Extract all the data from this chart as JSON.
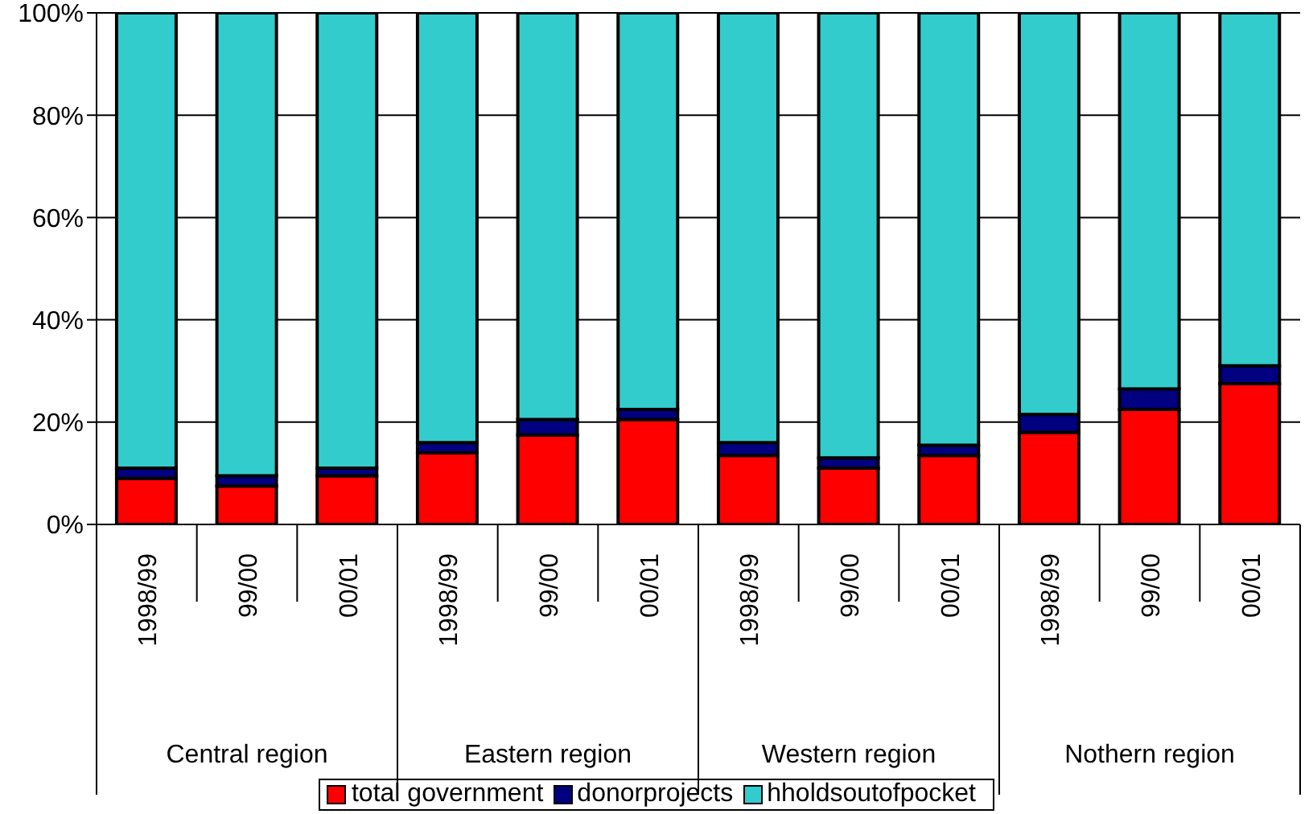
{
  "chart_data": {
    "type": "bar",
    "stacked": true,
    "categories": [
      "1998/99",
      "99/00",
      "00/01",
      "1998/99",
      "99/00",
      "00/01",
      "1998/99",
      "99/00",
      "00/01",
      "1998/99",
      "99/00",
      "00/01"
    ],
    "annotations": [
      "Central region",
      "Eastern region",
      "Western region",
      "Nothern region"
    ],
    "series": [
      {
        "name": "total government",
        "color": "#ff0000",
        "values": [
          9,
          7.5,
          9.5,
          14,
          17.5,
          20.5,
          13.5,
          11,
          13.5,
          18,
          22.5,
          27.5
        ]
      },
      {
        "name": "donorprojects",
        "color": "#000080",
        "values": [
          2,
          2,
          1.5,
          2,
          3,
          2,
          2.5,
          2,
          2,
          3.5,
          4,
          3.5
        ]
      },
      {
        "name": "hholdsoutofpocket",
        "color": "#33cccc",
        "values": [
          89,
          90.5,
          89,
          84,
          79.5,
          77.5,
          84,
          87,
          84.5,
          78.5,
          73.5,
          69
        ]
      }
    ],
    "ylim": [
      0,
      100
    ],
    "yticks": [
      {
        "value": 0,
        "label": "0%"
      },
      {
        "value": 20,
        "label": "20%"
      },
      {
        "value": 40,
        "label": "40%"
      },
      {
        "value": 60,
        "label": "60%"
      },
      {
        "value": 80,
        "label": "80%"
      },
      {
        "value": 100,
        "label": "100%"
      }
    ],
    "grid": "y",
    "legend": "bottom"
  }
}
